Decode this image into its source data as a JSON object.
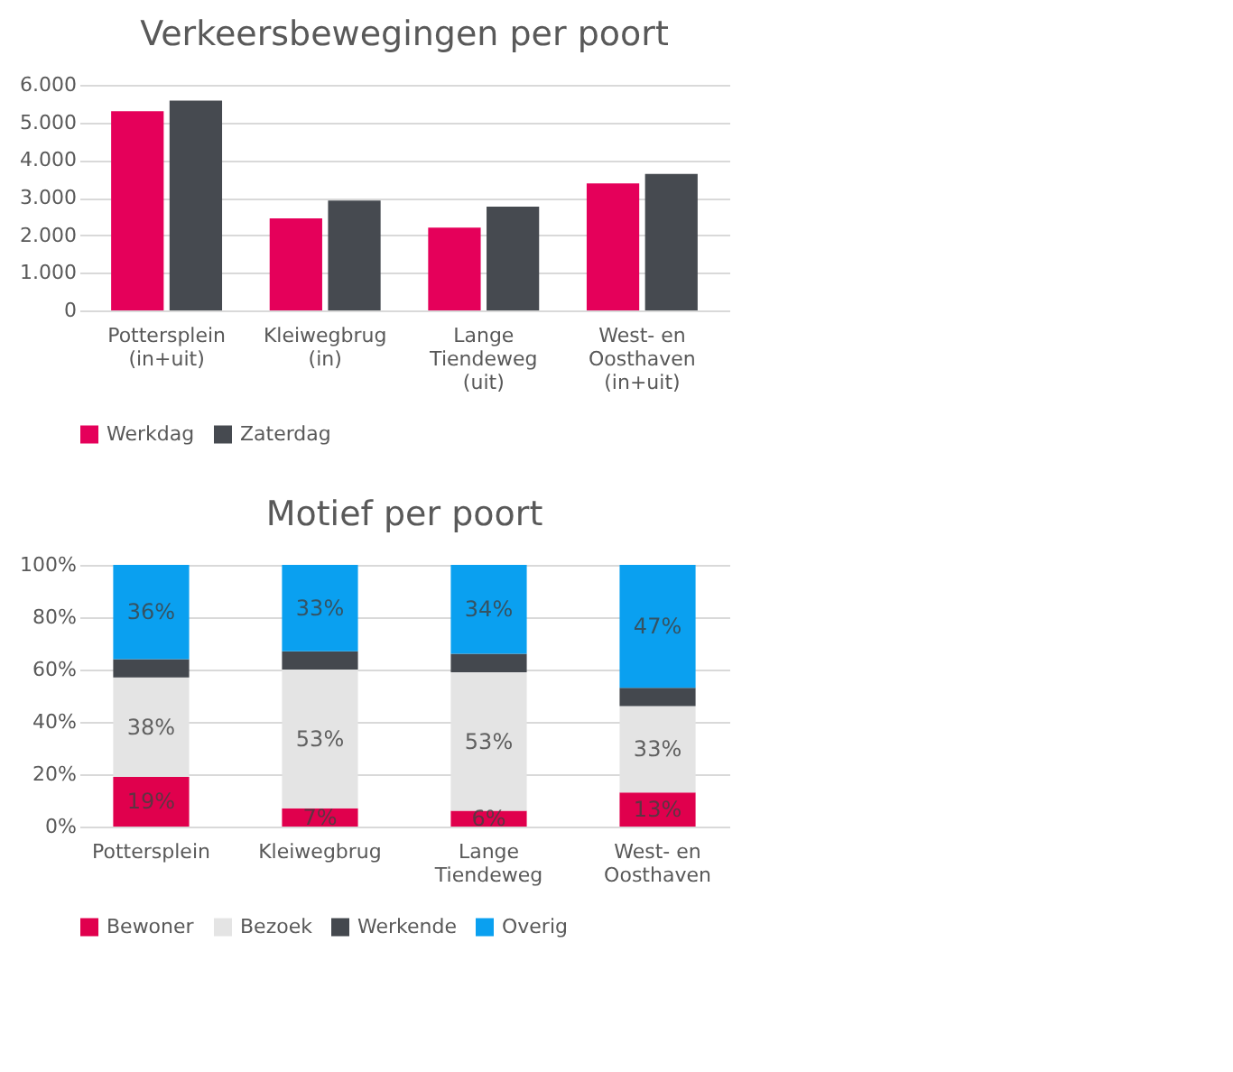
{
  "chart_data": [
    {
      "type": "bar",
      "title": "Verkeersbewegingen per poort",
      "categories": [
        "Pottersplein (in+uit)",
        "Kleiwegbrug (in)",
        "Lange Tiendeweg (uit)",
        "West- en Oosthaven (in+uit)"
      ],
      "series": [
        {
          "name": "Werkdag",
          "color": "#e5005a",
          "values": [
            5300,
            2450,
            2200,
            3380
          ]
        },
        {
          "name": "Zaterdag",
          "color": "#464a50",
          "values": [
            5580,
            2920,
            2760,
            3630
          ]
        }
      ],
      "ylim": [
        0,
        6000
      ],
      "yticks": [
        0,
        {
          "value": 1000,
          "label": "1.000"
        },
        {
          "value": 2000,
          "label": "2.000"
        },
        {
          "value": 3000,
          "label": "3.000"
        },
        {
          "value": 4000,
          "label": "4.000"
        },
        {
          "value": 5000,
          "label": "5.000"
        },
        {
          "value": 6000,
          "label": "6.000"
        }
      ],
      "grid": "y",
      "legend": "bottom"
    },
    {
      "type": "bar",
      "stacked": true,
      "title": "Motief per poort",
      "categories": [
        "Pottersplein",
        "Kleiwegbrug",
        "Lange Tiendeweg",
        "West- en Oosthaven"
      ],
      "series": [
        {
          "name": "Bewoner",
          "color": "#e0004d",
          "values": [
            19,
            7,
            6,
            13
          ],
          "value_labels": [
            "19%",
            "7%",
            "6%",
            "13%"
          ]
        },
        {
          "name": "Bezoek",
          "color": "#e4e4e4",
          "values": [
            38,
            53,
            53,
            33
          ],
          "value_labels": [
            "38%",
            "53%",
            "53%",
            "33%"
          ]
        },
        {
          "name": "Werkende",
          "color": "#44484e",
          "values": [
            7,
            7,
            7,
            7
          ],
          "value_labels": [
            null,
            null,
            null,
            null
          ]
        },
        {
          "name": "Overig",
          "color": "#0aa0f0",
          "values": [
            36,
            33,
            34,
            47
          ],
          "value_labels": [
            "36%",
            "33%",
            "34%",
            "47%"
          ]
        }
      ],
      "ylim": [
        0,
        100
      ],
      "yticks": [
        {
          "value": 0,
          "label": "0%"
        },
        {
          "value": 20,
          "label": "20%"
        },
        {
          "value": 40,
          "label": "40%"
        },
        {
          "value": 60,
          "label": "60%"
        },
        {
          "value": 80,
          "label": "80%"
        },
        {
          "value": 100,
          "label": "100%"
        }
      ],
      "grid": "y",
      "legend": "bottom"
    }
  ]
}
